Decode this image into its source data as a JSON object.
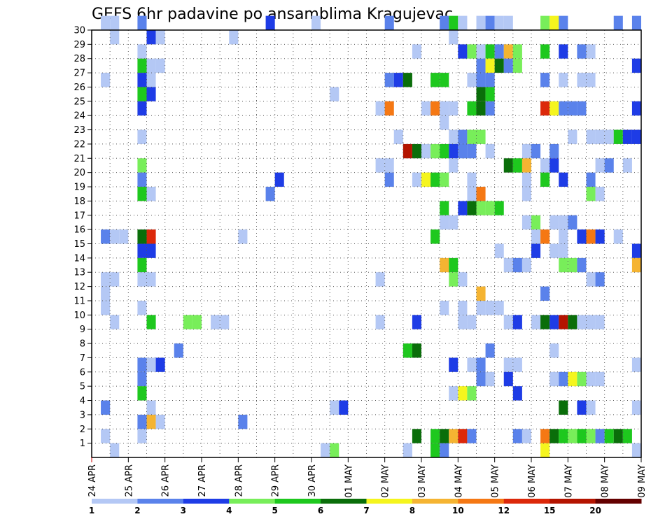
{
  "chart_data": {
    "type": "heatmap",
    "title": "GEFS 6hr padavine po ansamblima Kragujevac",
    "x_ticks": [
      "24 APR",
      "25 APR",
      "26 APR",
      "27 APR",
      "28 APR",
      "29 APR",
      "30 APR",
      "01 MAY",
      "02 MAY",
      "03 MAY",
      "04 MAY",
      "05 MAY",
      "06 MAY",
      "07 MAY",
      "08 MAY",
      "09 MAY"
    ],
    "y_ticks": [
      "1",
      "2",
      "3",
      "4",
      "5",
      "6",
      "7",
      "8",
      "9",
      "10",
      "11",
      "12",
      "13",
      "14",
      "15",
      "16",
      "17",
      "18",
      "19",
      "20",
      "21",
      "22",
      "23",
      "24",
      "25",
      "26",
      "27",
      "28",
      "29",
      "30"
    ],
    "x_range": [
      "2024-04-24T00:00",
      "2024-05-09T00:00"
    ],
    "y_range": [
      0,
      30
    ],
    "time_step_hours": 6,
    "grid": "dotted",
    "colorbar": {
      "position": "bottom",
      "levels": [
        1,
        2,
        3,
        4,
        5,
        6,
        7,
        8,
        10,
        12,
        15,
        20
      ],
      "tick_labels": [
        "1",
        "2",
        "3",
        "4",
        "5",
        "6",
        "7",
        "8",
        "10",
        "12",
        "15",
        "20"
      ],
      "colors": [
        "#b4c8f5",
        "#5a82eb",
        "#1e3ce6",
        "#78ee5a",
        "#1ec81e",
        "#0a6e0a",
        "#f5f51e",
        "#f5b432",
        "#f57814",
        "#dc280a",
        "#b41400",
        "#640000"
      ]
    },
    "cells": [
      {
        "member": 30,
        "t": [
          "04-24T06",
          "04-24T12",
          "04-25T06",
          "04-28T18",
          "04-30T00"
        ],
        "cls": [
          1,
          1,
          2,
          3,
          1
        ]
      },
      {
        "member": 30,
        "t": [
          "05-02T00",
          "05-03T12",
          "05-03T18",
          "05-04T00",
          "05-04T12",
          "05-04T18",
          "05-05T00",
          "05-05T06",
          "05-06T06",
          "05-06T12",
          "05-06T18",
          "05-08T06",
          "05-08T18"
        ],
        "cls": [
          2,
          2,
          5,
          1,
          1,
          2,
          1,
          1,
          4,
          7,
          2,
          2,
          2
        ]
      },
      {
        "member": 29,
        "t": [
          "04-24T12",
          "04-25T12",
          "04-25T18",
          "04-27T18",
          "05-03T18"
        ],
        "cls": [
          1,
          3,
          1,
          1,
          1
        ]
      },
      {
        "member": 28,
        "t": [
          "04-25T06",
          "05-02T18",
          "05-04T00",
          "05-04T06",
          "05-04T12",
          "05-04T18",
          "05-05T00",
          "05-05T06",
          "05-05T12",
          "05-06T06",
          "05-06T18",
          "05-07T06",
          "05-07T12"
        ],
        "cls": [
          1,
          1,
          3,
          4,
          1,
          5,
          2,
          8,
          4,
          5,
          3,
          2,
          1
        ]
      },
      {
        "member": 27,
        "t": [
          "04-25T06",
          "04-25T12",
          "04-25T18",
          "05-04T12",
          "05-04T18",
          "05-05T00",
          "05-05T06",
          "05-05T12",
          "05-08T18"
        ],
        "cls": [
          5,
          1,
          1,
          2,
          7,
          6,
          2,
          4,
          3
        ]
      },
      {
        "member": 26,
        "t": [
          "04-24T06",
          "04-25T06",
          "04-25T12",
          "05-02T00",
          "05-02T06",
          "05-02T12",
          "05-03T06",
          "05-03T12",
          "05-04T06",
          "05-04T12",
          "05-04T18",
          "05-06T06",
          "05-06T18",
          "05-07T06",
          "05-07T12"
        ],
        "cls": [
          1,
          3,
          1,
          2,
          3,
          6,
          5,
          5,
          1,
          2,
          2,
          2,
          1,
          1,
          1
        ]
      },
      {
        "member": 25,
        "t": [
          "04-25T06",
          "04-25T12",
          "04-30T12",
          "05-04T12",
          "05-04T18"
        ],
        "cls": [
          5,
          3,
          1,
          6,
          5
        ]
      },
      {
        "member": 24,
        "t": [
          "04-25T06",
          "05-01T18",
          "05-02T00",
          "05-03T00",
          "05-03T06",
          "05-03T12",
          "05-03T18",
          "05-04T06",
          "05-04T12",
          "05-04T18",
          "05-06T06",
          "05-06T12",
          "05-06T18",
          "05-07T00",
          "05-07T06",
          "05-08T18"
        ],
        "cls": [
          3,
          1,
          9,
          1,
          9,
          1,
          1,
          5,
          6,
          2,
          10,
          7,
          2,
          2,
          2,
          3
        ]
      },
      {
        "member": 23,
        "t": [
          "05-03T12"
        ],
        "cls": [
          1
        ]
      },
      {
        "member": 22,
        "t": [
          "04-25T06",
          "05-02T06",
          "05-03T18",
          "05-04T00",
          "05-04T06",
          "05-04T12",
          "05-07T00",
          "05-07T12",
          "05-07T18",
          "05-08T00",
          "05-08T06",
          "05-08T12",
          "05-08T18"
        ],
        "cls": [
          1,
          1,
          1,
          2,
          4,
          4,
          1,
          1,
          1,
          1,
          5,
          3,
          3
        ]
      },
      {
        "member": 21,
        "t": [
          "05-02T12",
          "05-02T18",
          "05-03T00",
          "05-03T06",
          "05-03T12",
          "05-03T18",
          "05-04T00",
          "05-04T06",
          "05-04T18",
          "05-05T18",
          "05-06T00",
          "05-06T12"
        ],
        "cls": [
          11,
          6,
          1,
          4,
          5,
          3,
          2,
          2,
          1,
          1,
          2,
          2
        ]
      },
      {
        "member": 20,
        "t": [
          "04-25T06",
          "05-01T18",
          "05-02T00",
          "05-03T18",
          "05-05T06",
          "05-05T12",
          "05-05T18",
          "05-06T06",
          "05-06T12",
          "05-07T18",
          "05-08T00",
          "05-08T12"
        ],
        "cls": [
          4,
          1,
          1,
          1,
          6,
          5,
          8,
          1,
          3,
          1,
          2,
          1
        ]
      },
      {
        "member": 19,
        "t": [
          "04-25T06",
          "04-29T00",
          "05-02T00",
          "05-02T18",
          "05-03T00",
          "05-03T06",
          "05-03T12",
          "05-04T06",
          "05-05T18",
          "05-06T06",
          "05-06T18",
          "05-07T12"
        ],
        "cls": [
          2,
          3,
          2,
          1,
          7,
          5,
          4,
          1,
          1,
          5,
          3,
          2
        ]
      },
      {
        "member": 18,
        "t": [
          "04-25T06",
          "04-25T12",
          "04-28T18",
          "05-04T06",
          "05-04T12",
          "05-05T18",
          "05-07T12",
          "05-07T18"
        ],
        "cls": [
          5,
          1,
          2,
          1,
          9,
          1,
          4,
          1
        ]
      },
      {
        "member": 17,
        "t": [
          "05-03T12",
          "05-04T00",
          "05-04T06",
          "05-04T12",
          "05-04T18",
          "05-05T00"
        ],
        "cls": [
          5,
          3,
          6,
          4,
          4,
          5
        ]
      },
      {
        "member": 16,
        "t": [
          "05-03T12",
          "05-03T18",
          "05-05T18",
          "05-06T00",
          "05-06T12",
          "05-06T18",
          "05-07T00"
        ],
        "cls": [
          1,
          1,
          1,
          4,
          1,
          1,
          2
        ]
      },
      {
        "member": 15,
        "t": [
          "04-24T06",
          "04-24T12",
          "04-24T18",
          "04-25T06",
          "04-25T12",
          "04-28T00",
          "05-03T06",
          "05-06T00",
          "05-06T06",
          "05-06T18",
          "05-07T06",
          "05-07T12",
          "05-07T18",
          "05-08T06"
        ],
        "cls": [
          2,
          1,
          1,
          6,
          10,
          1,
          5,
          1,
          9,
          1,
          3,
          9,
          3,
          1
        ]
      },
      {
        "member": 14,
        "t": [
          "04-25T06",
          "04-25T12",
          "05-05T00",
          "05-06T00",
          "05-06T12",
          "05-06T18",
          "05-08T18"
        ],
        "cls": [
          3,
          3,
          1,
          3,
          1,
          1,
          3
        ]
      },
      {
        "member": 13,
        "t": [
          "04-25T06",
          "05-03T12",
          "05-03T18",
          "05-05T06",
          "05-05T12",
          "05-05T18",
          "05-06T18",
          "05-07T00",
          "05-07T06",
          "05-08T18"
        ],
        "cls": [
          5,
          8,
          5,
          1,
          2,
          1,
          4,
          4,
          2,
          8
        ]
      },
      {
        "member": 12,
        "t": [
          "04-24T06",
          "04-24T12",
          "04-25T06",
          "04-25T12",
          "05-01T18",
          "05-03T18",
          "05-04T00",
          "05-07T12",
          "05-07T18"
        ],
        "cls": [
          1,
          1,
          1,
          1,
          1,
          4,
          1,
          1,
          2
        ]
      },
      {
        "member": 11,
        "t": [
          "04-24T06",
          "05-04T12",
          "05-06T06"
        ],
        "cls": [
          1,
          8,
          2
        ]
      },
      {
        "member": 10,
        "t": [
          "04-24T06",
          "04-25T06",
          "05-03T12",
          "05-04T00",
          "05-04T12",
          "05-04T18",
          "05-05T00"
        ],
        "cls": [
          1,
          1,
          1,
          1,
          1,
          1,
          1
        ]
      },
      {
        "member": 9,
        "t": [
          "04-24T12",
          "04-25T12",
          "04-26T12",
          "04-26T18",
          "04-27T06",
          "04-27T12",
          "05-01T18",
          "05-02T18",
          "05-04T00",
          "05-04T06",
          "05-05T06",
          "05-05T12",
          "05-06T00",
          "05-06T06",
          "05-06T12",
          "05-06T18",
          "05-07T00",
          "05-07T06",
          "05-07T12",
          "05-07T18"
        ],
        "cls": [
          1,
          5,
          4,
          4,
          1,
          1,
          1,
          3,
          1,
          1,
          1,
          3,
          1,
          6,
          3,
          11,
          6,
          1,
          1,
          1
        ]
      },
      {
        "member": 7,
        "t": [
          "04-26T06",
          "05-02T12",
          "05-02T18",
          "05-04T18",
          "05-06T12"
        ],
        "cls": [
          2,
          5,
          6,
          2,
          1
        ]
      },
      {
        "member": 6,
        "t": [
          "04-25T06",
          "04-25T12",
          "04-25T18",
          "05-03T18",
          "05-04T06",
          "05-04T12",
          "05-05T06",
          "05-05T12",
          "05-08T18"
        ],
        "cls": [
          2,
          1,
          3,
          3,
          1,
          2,
          1,
          1,
          1
        ]
      },
      {
        "member": 5,
        "t": [
          "04-25T06",
          "05-04T12",
          "05-04T18",
          "05-05T06",
          "05-06T12",
          "05-06T18",
          "05-07T00",
          "05-07T06",
          "05-07T12",
          "05-07T18"
        ],
        "cls": [
          2,
          2,
          1,
          3,
          1,
          2,
          7,
          4,
          1,
          1
        ]
      },
      {
        "member": 4,
        "t": [
          "04-25T06",
          "05-03T18",
          "05-04T00",
          "05-04T06",
          "05-05T12"
        ],
        "cls": [
          5,
          1,
          7,
          4,
          3
        ]
      },
      {
        "member": 3,
        "t": [
          "04-24T06",
          "04-25T12",
          "04-30T12",
          "04-30T18",
          "05-06T18",
          "05-07T06",
          "05-07T12",
          "05-08T18"
        ],
        "cls": [
          2,
          1,
          1,
          3,
          6,
          3,
          1,
          1
        ]
      },
      {
        "member": 2,
        "t": [
          "04-25T06",
          "04-25T12",
          "04-25T18",
          "04-28T00"
        ],
        "cls": [
          2,
          8,
          1,
          2
        ]
      },
      {
        "member": 1,
        "t": [
          "04-24T06",
          "04-25T06",
          "05-02T18",
          "05-03T06",
          "05-03T12",
          "05-03T18",
          "05-04T00",
          "05-04T06",
          "05-05T12",
          "05-05T18",
          "05-06T06",
          "05-06T12",
          "05-06T18",
          "05-07T00",
          "05-07T06",
          "05-07T12",
          "05-07T18",
          "05-08T00",
          "05-08T06",
          "05-08T12"
        ],
        "cls": [
          1,
          1,
          6,
          5,
          6,
          8,
          10,
          2,
          2,
          1,
          9,
          6,
          5,
          4,
          5,
          4,
          2,
          5,
          6,
          5
        ]
      },
      {
        "member": 0,
        "t": [
          "04-24T12",
          "04-30T06",
          "04-30T12",
          "05-02T12",
          "05-03T06",
          "05-03T12",
          "05-06T06",
          "05-08T18"
        ],
        "cls": [
          1,
          1,
          4,
          1,
          5,
          2,
          7,
          1
        ]
      }
    ]
  }
}
